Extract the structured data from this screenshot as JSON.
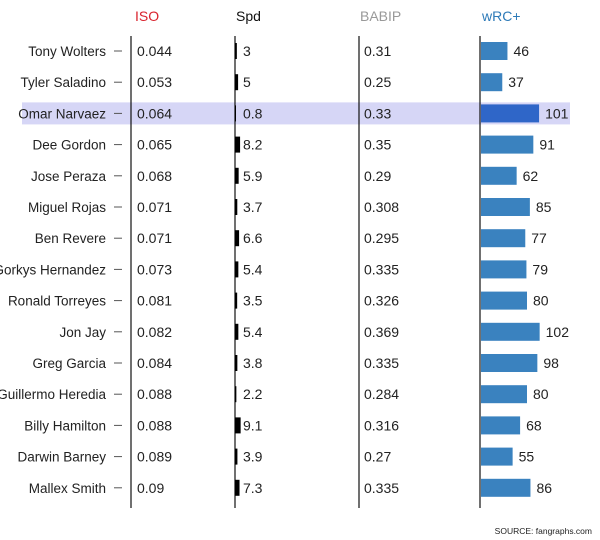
{
  "chart_data": {
    "type": "table",
    "columns": [
      {
        "key": "iso",
        "label": "ISO",
        "color": "#d9232e"
      },
      {
        "key": "spd",
        "label": "Spd",
        "color": "#111111"
      },
      {
        "key": "babip",
        "label": "BABIP",
        "color": "#999999"
      },
      {
        "key": "wrc",
        "label": "wRC+",
        "color": "#2d7ab8"
      }
    ],
    "highlight_row": "Omar Narvaez",
    "colors": {
      "bar": "#3a82bf",
      "bar_highlight": "#2f66c8",
      "highlight_band": "#d6d6f6",
      "spd_bar": "#000000"
    },
    "rows": [
      {
        "name": "Tony Wolters",
        "iso": "0.044",
        "spd": "3",
        "babip": "0.31",
        "wrc": "46"
      },
      {
        "name": "Tyler Saladino",
        "iso": "0.053",
        "spd": "5",
        "babip": "0.25",
        "wrc": "37"
      },
      {
        "name": "Omar Narvaez",
        "iso": "0.064",
        "spd": "0.8",
        "babip": "0.33",
        "wrc": "101"
      },
      {
        "name": "Dee Gordon",
        "iso": "0.065",
        "spd": "8.2",
        "babip": "0.35",
        "wrc": "91"
      },
      {
        "name": "Jose Peraza",
        "iso": "0.068",
        "spd": "5.9",
        "babip": "0.29",
        "wrc": "62"
      },
      {
        "name": "Miguel Rojas",
        "iso": "0.071",
        "spd": "3.7",
        "babip": "0.308",
        "wrc": "85"
      },
      {
        "name": "Ben Revere",
        "iso": "0.071",
        "spd": "6.6",
        "babip": "0.295",
        "wrc": "77"
      },
      {
        "name": "Gorkys Hernandez",
        "iso": "0.073",
        "spd": "5.4",
        "babip": "0.335",
        "wrc": "79"
      },
      {
        "name": "Ronald Torreyes",
        "iso": "0.081",
        "spd": "3.5",
        "babip": "0.326",
        "wrc": "80"
      },
      {
        "name": "Jon Jay",
        "iso": "0.082",
        "spd": "5.4",
        "babip": "0.369",
        "wrc": "102"
      },
      {
        "name": "Greg Garcia",
        "iso": "0.084",
        "spd": "3.8",
        "babip": "0.335",
        "wrc": "98"
      },
      {
        "name": "Guillermo Heredia",
        "iso": "0.088",
        "spd": "2.2",
        "babip": "0.284",
        "wrc": "80"
      },
      {
        "name": "Billy Hamilton",
        "iso": "0.088",
        "spd": "9.1",
        "babip": "0.316",
        "wrc": "68"
      },
      {
        "name": "Darwin Barney",
        "iso": "0.089",
        "spd": "3.9",
        "babip": "0.27",
        "wrc": "55"
      },
      {
        "name": "Mallex Smith",
        "iso": "0.09",
        "spd": "7.3",
        "babip": "0.335",
        "wrc": "86"
      }
    ]
  },
  "source": "SOURCE: fangraphs.com"
}
